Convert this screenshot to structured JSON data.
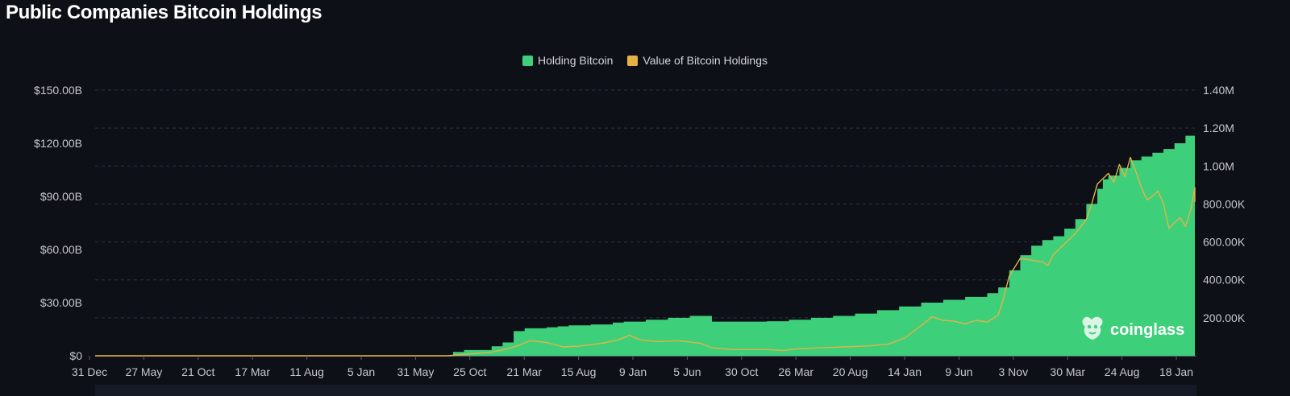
{
  "header": {
    "title": "Public Companies Bitcoin Holdings"
  },
  "brand": {
    "name": "coinglass"
  },
  "colors": {
    "background": "#0e1017",
    "holding": "#3ecf7b",
    "value": "#e6b245",
    "grid": "#2f3442",
    "axis_text": "#c6c8ce"
  },
  "chart_data": {
    "type": "area",
    "legend_position": "top-center",
    "grid": true,
    "x_labels": [
      "31 Dec",
      "27 May",
      "21 Oct",
      "17 Mar",
      "11 Aug",
      "5 Jan",
      "31 May",
      "25 Oct",
      "21 Mar",
      "15 Aug",
      "9 Jan",
      "5 Jun",
      "30 Oct",
      "26 Mar",
      "20 Aug",
      "14 Jan",
      "9 Jun",
      "3 Nov",
      "30 Mar",
      "24 Aug",
      "18 Jan"
    ],
    "x_range": [
      0,
      100
    ],
    "y_left": {
      "ticks": [
        "$0",
        "$30.00B",
        "$60.00B",
        "$90.00B",
        "$120.00B",
        "$150.00B"
      ],
      "range": [
        0,
        150
      ]
    },
    "y_right": {
      "ticks": [
        "200.00K",
        "400.00K",
        "600.00K",
        "800.00K",
        "1.00M",
        "1.20M",
        "1.40M"
      ],
      "range": [
        0,
        1.4
      ]
    },
    "series": [
      {
        "name": "Holding Bitcoin",
        "axis": "right",
        "unit": "M BTC",
        "points": [
          [
            0,
            0
          ],
          [
            30,
            0
          ],
          [
            32.5,
            0.02
          ],
          [
            33.5,
            0.03
          ],
          [
            35.5,
            0.03
          ],
          [
            36,
            0.05
          ],
          [
            37,
            0.07
          ],
          [
            38,
            0.13
          ],
          [
            39,
            0.145
          ],
          [
            40,
            0.145
          ],
          [
            41,
            0.15
          ],
          [
            42,
            0.155
          ],
          [
            43,
            0.16
          ],
          [
            45,
            0.165
          ],
          [
            47,
            0.175
          ],
          [
            48,
            0.18
          ],
          [
            50,
            0.19
          ],
          [
            52,
            0.2
          ],
          [
            54,
            0.21
          ],
          [
            56,
            0.21
          ],
          [
            56,
            0.18
          ],
          [
            58,
            0.18
          ],
          [
            61,
            0.182
          ],
          [
            63,
            0.19
          ],
          [
            65,
            0.2
          ],
          [
            67,
            0.21
          ],
          [
            69,
            0.222
          ],
          [
            71,
            0.24
          ],
          [
            73,
            0.26
          ],
          [
            75,
            0.28
          ],
          [
            77,
            0.295
          ],
          [
            79,
            0.31
          ],
          [
            81,
            0.33
          ],
          [
            82,
            0.36
          ],
          [
            83,
            0.45
          ],
          [
            84,
            0.53
          ],
          [
            85,
            0.58
          ],
          [
            86,
            0.61
          ],
          [
            87,
            0.63
          ],
          [
            88,
            0.67
          ],
          [
            89,
            0.72
          ],
          [
            90,
            0.8
          ],
          [
            91,
            0.88
          ],
          [
            91.5,
            0.93
          ],
          [
            92,
            0.95
          ],
          [
            93,
            0.99
          ],
          [
            94,
            1.03
          ],
          [
            95,
            1.05
          ],
          [
            96,
            1.07
          ],
          [
            97,
            1.09
          ],
          [
            98,
            1.12
          ],
          [
            99,
            1.16
          ],
          [
            100,
            1.21
          ],
          [
            100.5,
            1.24
          ]
        ]
      },
      {
        "name": "Value of Bitcoin Holdings",
        "axis": "left",
        "unit": "$B",
        "points": [
          [
            0,
            0
          ],
          [
            32,
            0
          ],
          [
            34,
            1
          ],
          [
            36,
            2
          ],
          [
            37.5,
            4
          ],
          [
            38.5,
            6
          ],
          [
            39.5,
            8.5
          ],
          [
            41,
            7.5
          ],
          [
            42.5,
            5
          ],
          [
            44,
            5.5
          ],
          [
            46,
            7
          ],
          [
            47.5,
            9
          ],
          [
            48.5,
            11.5
          ],
          [
            49.5,
            9
          ],
          [
            51,
            8
          ],
          [
            53,
            8.5
          ],
          [
            55,
            7
          ],
          [
            56,
            4.5
          ],
          [
            58,
            3.5
          ],
          [
            61,
            3.5
          ],
          [
            62.5,
            3
          ],
          [
            64,
            4
          ],
          [
            66,
            4.5
          ],
          [
            68,
            5
          ],
          [
            70,
            5.5
          ],
          [
            72,
            6.5
          ],
          [
            73.5,
            10
          ],
          [
            75,
            17
          ],
          [
            76,
            22
          ],
          [
            77,
            20
          ],
          [
            78,
            19.5
          ],
          [
            79,
            18
          ],
          [
            80,
            20
          ],
          [
            81,
            19
          ],
          [
            82,
            23
          ],
          [
            82.5,
            33
          ],
          [
            83,
            45
          ],
          [
            84,
            55
          ],
          [
            85,
            54
          ],
          [
            86,
            53
          ],
          [
            86.5,
            51
          ],
          [
            87,
            57
          ],
          [
            88,
            63
          ],
          [
            89,
            69
          ],
          [
            90,
            77
          ],
          [
            90.5,
            86
          ],
          [
            91,
            97
          ],
          [
            92,
            103
          ],
          [
            92.5,
            98
          ],
          [
            93,
            108
          ],
          [
            93.5,
            101
          ],
          [
            94,
            112
          ],
          [
            94.5,
            104
          ],
          [
            95,
            95
          ],
          [
            95.5,
            88
          ],
          [
            96,
            90
          ],
          [
            96.5,
            93
          ],
          [
            97,
            86
          ],
          [
            97.5,
            72
          ],
          [
            98,
            75
          ],
          [
            98.5,
            78
          ],
          [
            99,
            73
          ],
          [
            99.5,
            83
          ],
          [
            100,
            95
          ],
          [
            100.5,
            87
          ],
          [
            101,
            94
          ]
        ]
      }
    ]
  }
}
